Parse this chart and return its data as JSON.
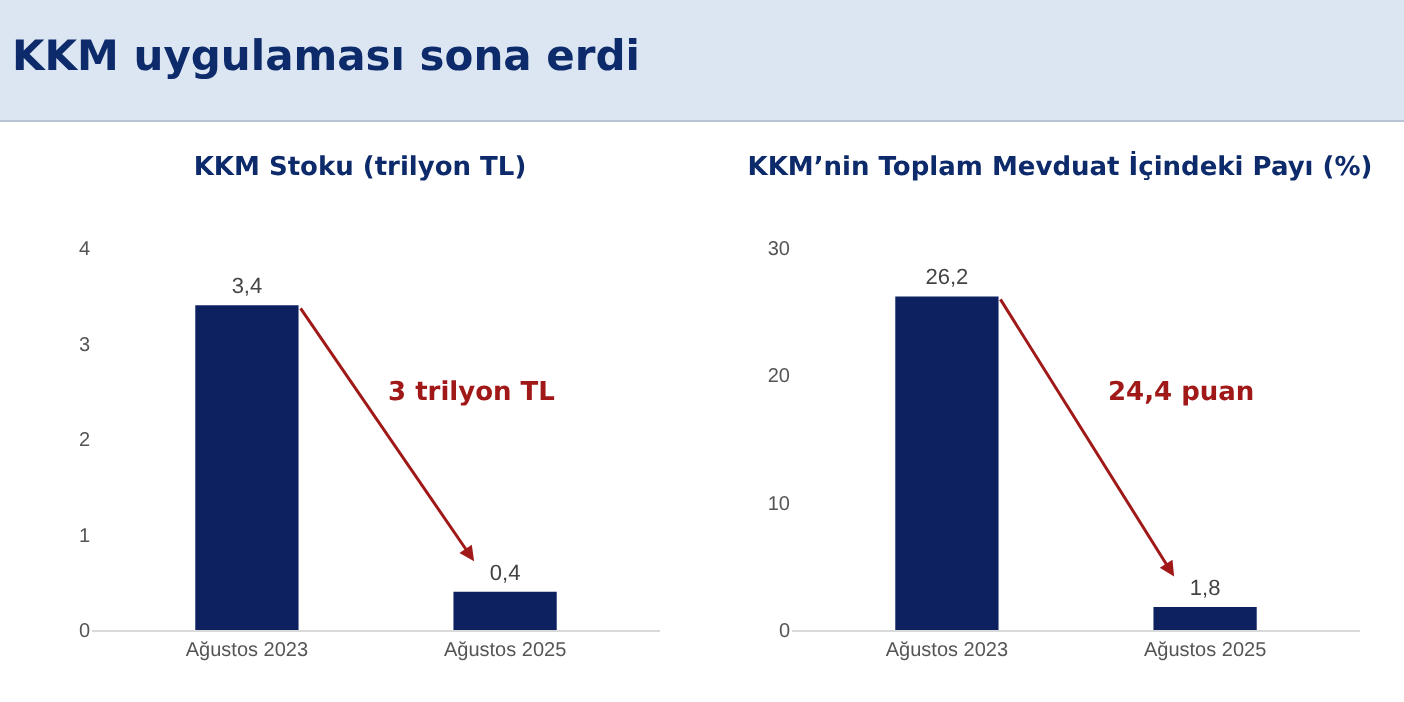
{
  "chart_data": [
    {
      "type": "bar",
      "title": "KKM uygulaması sona erdi",
      "subtitle": "KKM Stoku (trilyon TL)",
      "categories": [
        "Ağustos 2023",
        "Ağustos 2025"
      ],
      "values": [
        3.4,
        0.4
      ],
      "value_labels": [
        "3,4",
        "0,4"
      ],
      "color": "#0d2060",
      "ylim": [
        0,
        4
      ],
      "yticks": [
        0,
        1,
        2,
        3,
        4
      ],
      "annotations": [
        "3 trilyon TL"
      ]
    },
    {
      "type": "bar",
      "title": "KKM’nin Toplam Mevduat İçindeki Payı (%)",
      "categories": [
        "Ağustos 2023",
        "Ağustos 2025"
      ],
      "values": [
        26.2,
        1.8
      ],
      "value_labels": [
        "26,2",
        "1,8"
      ],
      "color": "#0d2060",
      "ylim": [
        0,
        30
      ],
      "yticks": [
        0,
        10,
        20,
        30
      ],
      "annotations": [
        "24,4 puan"
      ]
    }
  ]
}
